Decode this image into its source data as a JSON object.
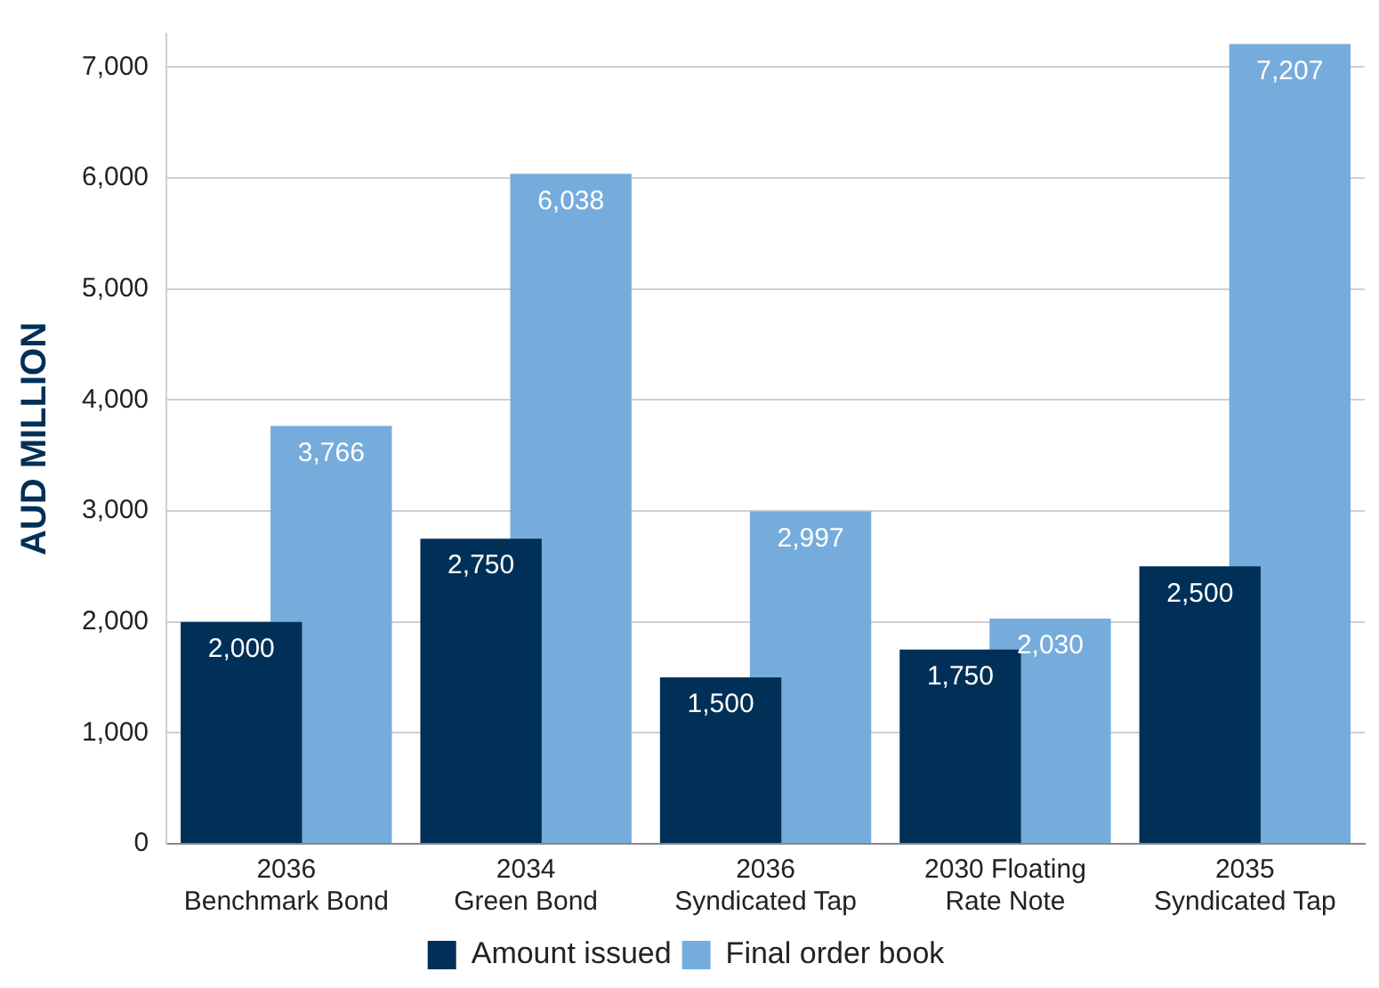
{
  "chart_data": {
    "type": "bar",
    "ylabel": "AUD MILLION",
    "categories": [
      "2036\nBenchmark Bond",
      "2034\nGreen Bond",
      "2036\nSyndicated Tap",
      "2030 Floating\nRate Note",
      "2035\nSyndicated Tap"
    ],
    "series": [
      {
        "name": "Amount issued",
        "color": "#003057",
        "values": [
          2000,
          2750,
          1500,
          1750,
          2500
        ],
        "value_labels": [
          "2,000",
          "2,750",
          "1,500",
          "1,750",
          "2,500"
        ]
      },
      {
        "name": "Final order book",
        "color": "#75acdb",
        "values": [
          3766,
          6038,
          2997,
          2030,
          7207
        ],
        "value_labels": [
          "3,766",
          "6,038",
          "2,997",
          "2,030",
          "7,207"
        ]
      }
    ],
    "ylim": [
      0,
      7300
    ],
    "yticks": [
      0,
      {
        "value": 1000,
        "label": "1,000"
      },
      {
        "value": 2000,
        "label": "2,000"
      },
      {
        "value": 3000,
        "label": "3,000"
      },
      {
        "value": 4000,
        "label": "4,000"
      },
      {
        "value": 5000,
        "label": "5,000"
      },
      {
        "value": 6000,
        "label": "6,000"
      },
      {
        "value": 7000,
        "label": "7,000"
      }
    ],
    "grid": "y",
    "legend": "bottom"
  }
}
